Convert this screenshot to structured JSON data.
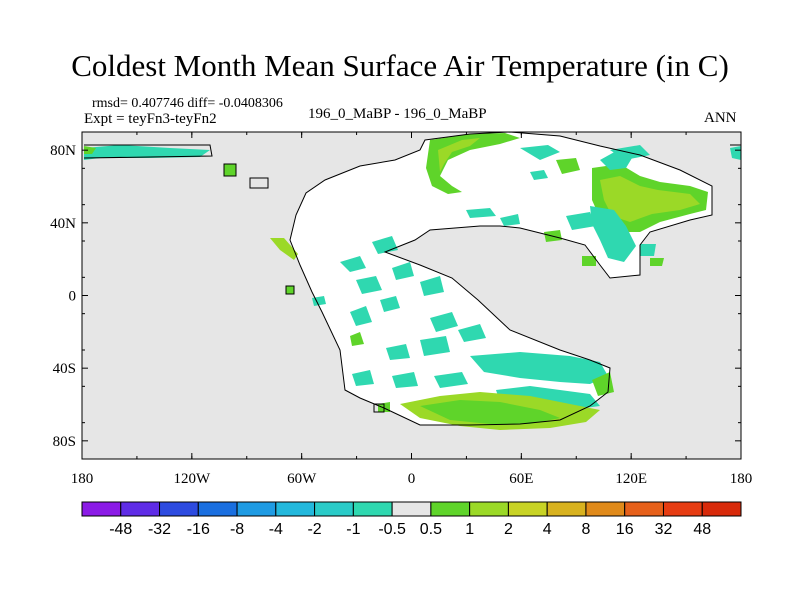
{
  "title": "Coldest Month Mean Surface Air Temperature (in C)",
  "rmsd_line": "rmsd= 0.407746 diff= -0.0408306",
  "expt_line": "Expt = teyFn3-teyFn2",
  "center_label": "196_0_MaBP - 196_0_MaBP",
  "season_label": "ANN",
  "lat_ticks": [
    "80N",
    "40N",
    "0",
    "40S",
    "80S"
  ],
  "lon_ticks": [
    "180",
    "120W",
    "60W",
    "0",
    "60E",
    "120E",
    "180"
  ],
  "colorbar": {
    "labels": [
      "-48",
      "-32",
      "-16",
      "-8",
      "-4",
      "-2",
      "-1",
      "-0.5",
      "0.5",
      "1",
      "2",
      "4",
      "8",
      "16",
      "32",
      "48"
    ],
    "colors": [
      "#8b1be6",
      "#5f2ce6",
      "#2d4be0",
      "#1a6fe0",
      "#1f9be3",
      "#23b8dc",
      "#2acbc8",
      "#2fd8b0",
      "#e6e6e6",
      "#5fd42a",
      "#9bd927",
      "#c8d325",
      "#d8b21f",
      "#e08a1a",
      "#e6601a",
      "#e63c12",
      "#d82a0a"
    ]
  },
  "chart_data": {
    "type": "heatmap",
    "title": "Coldest Month Mean Surface Air Temperature (in C)",
    "projection": "cylindrical equidistant",
    "lon_range": [
      -180,
      180
    ],
    "lat_range": [
      -90,
      90
    ],
    "xlabel": "",
    "ylabel": "",
    "contour_levels": [
      -48,
      -32,
      -16,
      -8,
      -4,
      -2,
      -1,
      -0.5,
      0.5,
      1,
      2,
      4,
      8,
      16,
      32,
      48
    ],
    "background_value_range": [
      -0.5,
      0.5
    ],
    "notable_regions": [
      {
        "name": "high northern latitudes near 20E-40E",
        "sign": "positive",
        "range": "0.5 to 2"
      },
      {
        "name": "eastern Pangea 60E-160E, 20N-60N",
        "sign": "mixed",
        "range": "-1 to 2"
      },
      {
        "name": "southern Pangea 30E-110E, 50S-70S",
        "sign": "mixed",
        "range": "-1 to 2"
      },
      {
        "name": "central Pangea 0-60E, 0-40S",
        "sign": "negative",
        "range": "-0.5 to -1"
      }
    ]
  }
}
